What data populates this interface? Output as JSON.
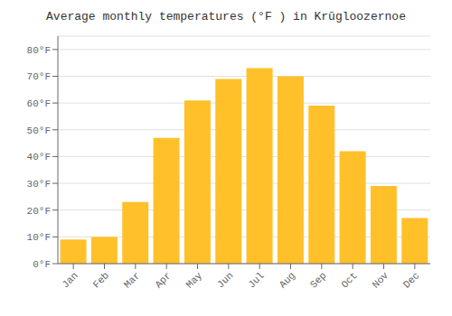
{
  "chart_data": {
    "type": "bar",
    "title": "Average monthly temperatures (°F ) in Krūgloozernoe",
    "categories": [
      "Jan",
      "Feb",
      "Mar",
      "Apr",
      "May",
      "Jun",
      "Jul",
      "Aug",
      "Sep",
      "Oct",
      "Nov",
      "Dec"
    ],
    "values": [
      9,
      10,
      23,
      47,
      61,
      69,
      73,
      70,
      59,
      42,
      29,
      17
    ],
    "color": "#FFC02A",
    "ylim": [
      0,
      85
    ],
    "yticks": [
      {
        "value": 0,
        "label": "0°F"
      },
      {
        "value": 10,
        "label": "10°F"
      },
      {
        "value": 20,
        "label": "20°F"
      },
      {
        "value": 30,
        "label": "30°F"
      },
      {
        "value": 40,
        "label": "40°F"
      },
      {
        "value": 50,
        "label": "50°F"
      },
      {
        "value": 60,
        "label": "60°F"
      },
      {
        "value": 70,
        "label": "70°F"
      },
      {
        "value": 80,
        "label": "80°F"
      }
    ],
    "grid": true
  }
}
